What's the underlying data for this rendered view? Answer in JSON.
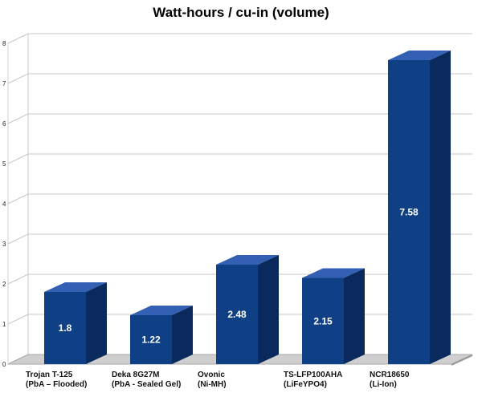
{
  "chart_data": {
    "type": "bar",
    "title": "Watt-hours / cu-in (volume)",
    "xlabel": "",
    "ylabel": "",
    "ylim": [
      0,
      8
    ],
    "yticks": [
      0,
      1,
      2,
      3,
      4,
      5,
      6,
      7,
      8
    ],
    "grid": true,
    "legend": "none",
    "style": "3d-column",
    "colors": {
      "front": "#0f3f85",
      "top": "#3460b3",
      "side": "#0a2a5e",
      "grid": "#c9c9c9",
      "floor": "#cfcfcf"
    },
    "categories": [
      [
        "Trojan T-125",
        "(PbA – Flooded)"
      ],
      [
        "Deka 8G27M",
        "(PbA - Sealed Gel)"
      ],
      [
        "Ovonic",
        "(Ni-MH)"
      ],
      [
        "TS-LFP100AHA",
        "(LiFeYPO4)"
      ],
      [
        "NCR18650",
        "(Li-Ion)"
      ]
    ],
    "values": [
      1.8,
      1.22,
      2.48,
      2.15,
      7.58
    ],
    "data_labels": [
      "1.8",
      "1.22",
      "2.48",
      "2.15",
      "7.58"
    ]
  }
}
